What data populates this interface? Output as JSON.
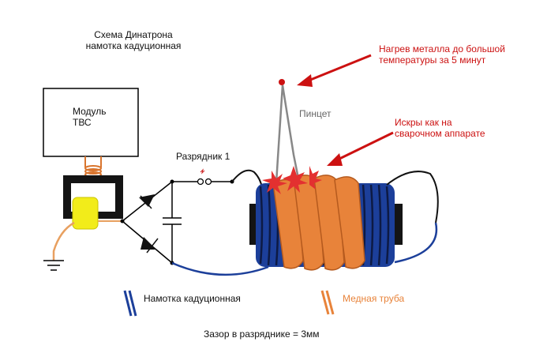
{
  "title": {
    "line1": "Схема Динатрона",
    "line2": "намотка кадуционная"
  },
  "module": {
    "line1": "Модуль",
    "line2": "ТВС"
  },
  "spark_gap_label": "Разрядник 1",
  "tweezers_label": "Пинцет",
  "heating_note": {
    "line1": "Нагрев металла до большой",
    "line2": "температуры за 5 минут"
  },
  "sparks_note": {
    "line1": "Искры как на",
    "line2": "сварочном аппарате"
  },
  "legend": {
    "winding": "Намотка кадуционная",
    "copper_tube": "Медная труба"
  },
  "gap_note": "Зазор в разряднике = 3мм",
  "colors": {
    "annotation_red": "#cc1111",
    "copper_orange": "#e8833a",
    "winding_blue": "#1c3f9a",
    "ferrite_yellow": "#f2ec1a",
    "core_black": "#111111"
  }
}
